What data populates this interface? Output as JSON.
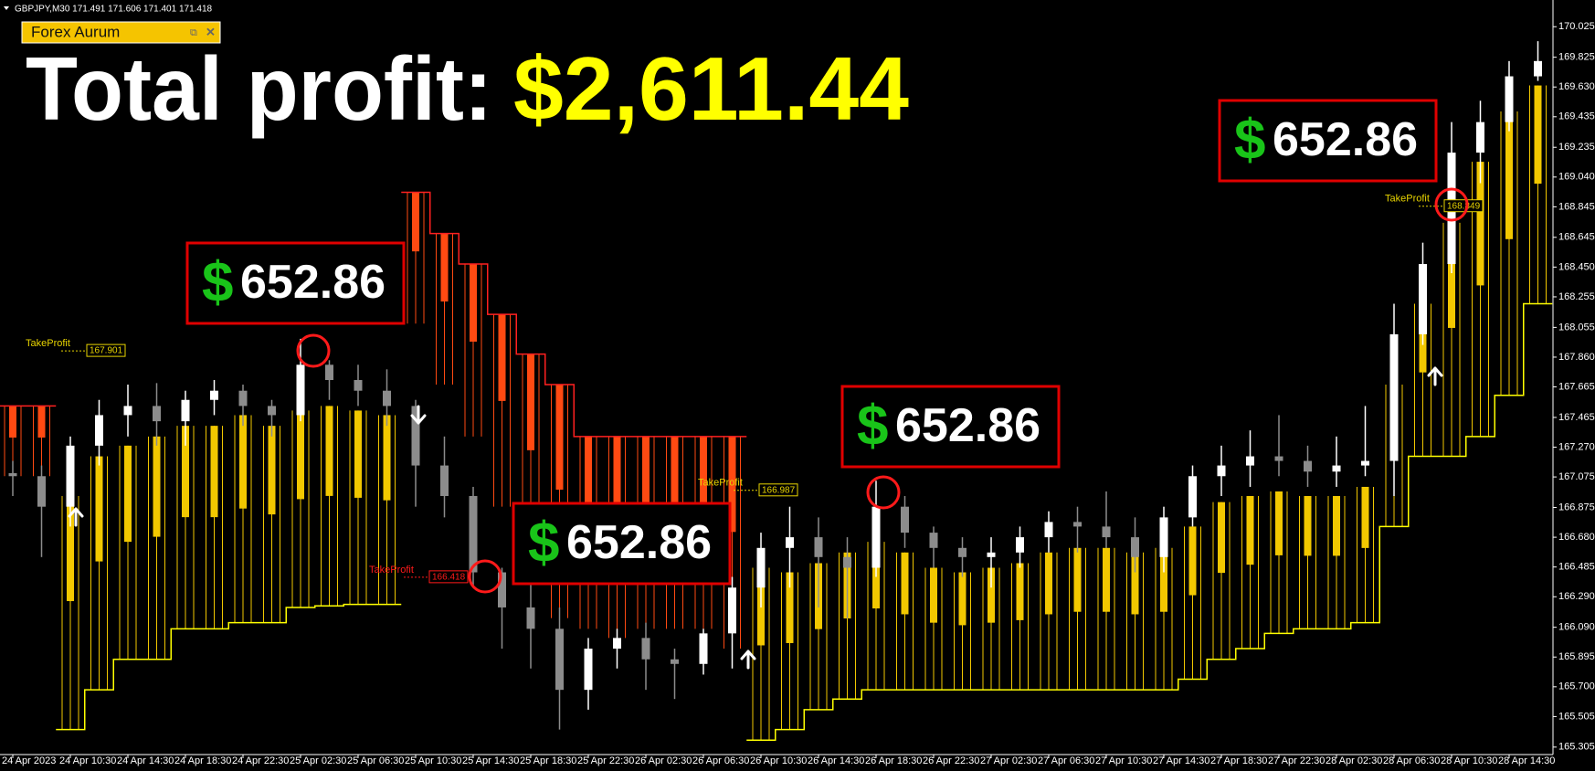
{
  "header": "GBPJPY,M30  171.491 171.606 171.401 171.418",
  "badge": "Forex Aurum",
  "chart_data": {
    "type": "candlestick",
    "title_label": "Total profit:",
    "title_value": "$2,611.44",
    "categories": [
      "24 Apr 2023",
      null,
      "24 Apr 10:30",
      null,
      "24 Apr 14:30",
      null,
      "24 Apr 18:30",
      null,
      "24 Apr 22:30",
      null,
      "25 Apr 02:30",
      null,
      "25 Apr 06:30",
      null,
      "25 Apr 10:30",
      null,
      "25 Apr 14:30",
      null,
      "25 Apr 18:30",
      null,
      "25 Apr 22:30",
      null,
      "26 Apr 02:30",
      null,
      "26 Apr 06:30",
      null,
      "26 Apr 10:30",
      null,
      "26 Apr 14:30",
      null,
      "26 Apr 18:30",
      null,
      "26 Apr 22:30",
      null,
      "27 Apr 02:30",
      null,
      "27 Apr 06:30",
      null,
      "27 Apr 10:30",
      null,
      "27 Apr 14:30",
      null,
      "27 Apr 18:30",
      null,
      "27 Apr 22:30",
      null,
      "28 Apr 02:30",
      null,
      "28 Apr 06:30",
      null,
      "28 Apr 10:30",
      null,
      "28 Apr 14:30",
      null
    ],
    "candles": [
      [
        167.1,
        167.18,
        166.95,
        167.08
      ],
      [
        167.08,
        167.15,
        166.55,
        166.88
      ],
      [
        166.88,
        167.34,
        166.75,
        167.28
      ],
      [
        167.28,
        167.58,
        167.15,
        167.48
      ],
      [
        167.48,
        167.68,
        167.34,
        167.54
      ],
      [
        167.54,
        167.69,
        167.28,
        167.44
      ],
      [
        167.44,
        167.64,
        167.28,
        167.58
      ],
      [
        167.58,
        167.71,
        167.48,
        167.64
      ],
      [
        167.64,
        167.68,
        167.41,
        167.54
      ],
      [
        167.54,
        167.58,
        167.34,
        167.48
      ],
      [
        167.48,
        167.98,
        167.44,
        167.81
      ],
      [
        167.81,
        167.84,
        167.58,
        167.71
      ],
      [
        167.71,
        167.81,
        167.54,
        167.64
      ],
      [
        167.64,
        167.78,
        167.41,
        167.54
      ],
      [
        167.54,
        167.58,
        166.88,
        167.15
      ],
      [
        167.15,
        167.34,
        166.81,
        166.95
      ],
      [
        166.95,
        167.01,
        166.35,
        166.45
      ],
      [
        166.45,
        166.48,
        165.95,
        166.22
      ],
      [
        166.22,
        166.38,
        165.82,
        166.08
      ],
      [
        166.08,
        166.22,
        165.42,
        165.68
      ],
      [
        165.68,
        166.02,
        165.55,
        165.95
      ],
      [
        165.95,
        166.08,
        165.82,
        166.02
      ],
      [
        166.02,
        166.12,
        165.68,
        165.88
      ],
      [
        165.88,
        165.95,
        165.62,
        165.85
      ],
      [
        165.85,
        166.08,
        165.78,
        166.05
      ],
      [
        166.05,
        166.42,
        165.82,
        166.35
      ],
      [
        166.35,
        166.71,
        166.22,
        166.61
      ],
      [
        166.61,
        166.88,
        166.35,
        166.68
      ],
      [
        166.68,
        166.81,
        166.22,
        166.55
      ],
      [
        166.55,
        166.68,
        166.15,
        166.48
      ],
      [
        166.48,
        167.05,
        166.42,
        166.88
      ],
      [
        166.88,
        166.95,
        166.61,
        166.71
      ],
      [
        166.71,
        166.75,
        166.48,
        166.61
      ],
      [
        166.61,
        166.68,
        166.42,
        166.55
      ],
      [
        166.55,
        166.68,
        166.35,
        166.58
      ],
      [
        166.58,
        166.75,
        166.48,
        166.68
      ],
      [
        166.68,
        166.85,
        166.58,
        166.78
      ],
      [
        166.78,
        166.88,
        166.58,
        166.75
      ],
      [
        166.75,
        166.98,
        166.61,
        166.68
      ],
      [
        166.68,
        166.81,
        166.45,
        166.55
      ],
      [
        166.55,
        166.88,
        166.45,
        166.81
      ],
      [
        166.81,
        167.15,
        166.75,
        167.08
      ],
      [
        167.08,
        167.28,
        166.95,
        167.15
      ],
      [
        167.15,
        167.38,
        167.01,
        167.21
      ],
      [
        167.21,
        167.48,
        167.08,
        167.18
      ],
      [
        167.18,
        167.28,
        167.01,
        167.11
      ],
      [
        167.11,
        167.34,
        167.01,
        167.15
      ],
      [
        167.15,
        167.54,
        167.08,
        167.18
      ],
      [
        167.18,
        168.21,
        166.95,
        168.01
      ],
      [
        168.01,
        168.61,
        167.94,
        168.47
      ],
      [
        168.47,
        169.4,
        168.41,
        169.2
      ],
      [
        169.2,
        169.54,
        169.0,
        169.4
      ],
      [
        169.4,
        169.8,
        169.34,
        169.7
      ],
      [
        169.7,
        169.93,
        169.67,
        169.8
      ]
    ],
    "up_color": "#ffffff",
    "down_color": "#8c8c8c",
    "bands": [
      [
        167.54,
        167.08
      ],
      [
        167.54,
        167.08
      ],
      [
        166.95,
        165.42
      ],
      [
        167.21,
        165.68
      ],
      [
        167.28,
        165.88
      ],
      [
        167.34,
        165.88
      ],
      [
        167.41,
        166.08
      ],
      [
        167.41,
        166.08
      ],
      [
        167.48,
        166.12
      ],
      [
        167.41,
        166.12
      ],
      [
        167.51,
        166.22
      ],
      [
        167.54,
        166.23
      ],
      [
        167.51,
        166.24
      ],
      [
        167.48,
        166.24
      ],
      [
        168.94,
        168.08
      ],
      [
        168.67,
        167.68
      ],
      [
        168.47,
        167.34
      ],
      [
        168.14,
        166.88
      ],
      [
        167.88,
        166.48
      ],
      [
        167.68,
        166.15
      ],
      [
        167.34,
        166.08
      ],
      [
        167.34,
        166.02
      ],
      [
        167.34,
        166.08
      ],
      [
        167.34,
        166.08
      ],
      [
        167.34,
        166.08
      ],
      [
        167.34,
        165.95
      ],
      [
        166.48,
        165.35
      ],
      [
        166.45,
        165.42
      ],
      [
        166.51,
        165.55
      ],
      [
        166.58,
        165.62
      ],
      [
        166.65,
        165.68
      ],
      [
        166.58,
        165.68
      ],
      [
        166.48,
        165.68
      ],
      [
        166.45,
        165.68
      ],
      [
        166.48,
        165.68
      ],
      [
        166.51,
        165.68
      ],
      [
        166.58,
        165.68
      ],
      [
        166.61,
        165.68
      ],
      [
        166.61,
        165.68
      ],
      [
        166.58,
        165.68
      ],
      [
        166.61,
        165.68
      ],
      [
        166.75,
        165.75
      ],
      [
        166.91,
        165.88
      ],
      [
        166.95,
        165.95
      ],
      [
        166.98,
        166.05
      ],
      [
        166.95,
        166.08
      ],
      [
        166.95,
        166.08
      ],
      [
        167.01,
        166.12
      ],
      [
        167.68,
        166.75
      ],
      [
        168.21,
        167.21
      ],
      [
        168.74,
        167.21
      ],
      [
        169.14,
        167.34
      ],
      [
        169.47,
        167.61
      ],
      [
        169.64,
        168.21
      ]
    ],
    "trend": [
      "down",
      "down",
      "up",
      "up",
      "up",
      "up",
      "up",
      "up",
      "up",
      "up",
      "up",
      "up",
      "up",
      "up",
      "down",
      "down",
      "down",
      "down",
      "down",
      "down",
      "down",
      "down",
      "down",
      "down",
      "down",
      "down",
      "up",
      "up",
      "up",
      "up",
      "up",
      "up",
      "up",
      "up",
      "up",
      "up",
      "up",
      "up",
      "up",
      "up",
      "up",
      "up",
      "up",
      "up",
      "up",
      "up",
      "up",
      "up",
      "up",
      "up",
      "up",
      "up",
      "up",
      "up"
    ],
    "band_colors": {
      "up": "#f2c800",
      "down": "#ff4a12"
    },
    "ylim": [
      165.28,
      170.2
    ],
    "yticks": [
      170.025,
      169.825,
      {
        "value": 169.63,
        "label": "169.630"
      },
      169.435,
      169.235,
      {
        "value": 169.04,
        "label": "169.040"
      },
      168.845,
      168.645,
      {
        "value": 168.45,
        "label": "168.450"
      },
      168.255,
      168.055,
      {
        "value": 167.86,
        "label": "167.860"
      },
      167.665,
      167.465,
      {
        "value": 167.27,
        "label": "167.270"
      },
      167.075,
      166.875,
      {
        "value": 166.68,
        "label": "166.680"
      },
      166.485,
      {
        "value": 166.29,
        "label": "166.290"
      },
      {
        "value": 166.09,
        "label": "166.090"
      },
      165.895,
      {
        "value": 165.7,
        "label": "165.700"
      },
      165.505,
      165.305
    ],
    "take_profits": [
      {
        "label": "TakeProfit",
        "value": 167.901,
        "color": "#e8d400"
      },
      {
        "label": "TakeProfit",
        "value": 166.418,
        "color": "#ff1a1a"
      },
      {
        "label": "TakeProfit",
        "value": 166.987,
        "color": "#e8d400"
      },
      {
        "label": "TakeProfit",
        "value": 168.849,
        "color": "#e8d400"
      }
    ],
    "profits": [
      {
        "currency": "$",
        "amount": 652.86
      },
      {
        "currency": "$",
        "amount": 652.86
      },
      {
        "currency": "$",
        "amount": 652.86
      },
      {
        "currency": "$",
        "amount": 652.86
      }
    ]
  }
}
